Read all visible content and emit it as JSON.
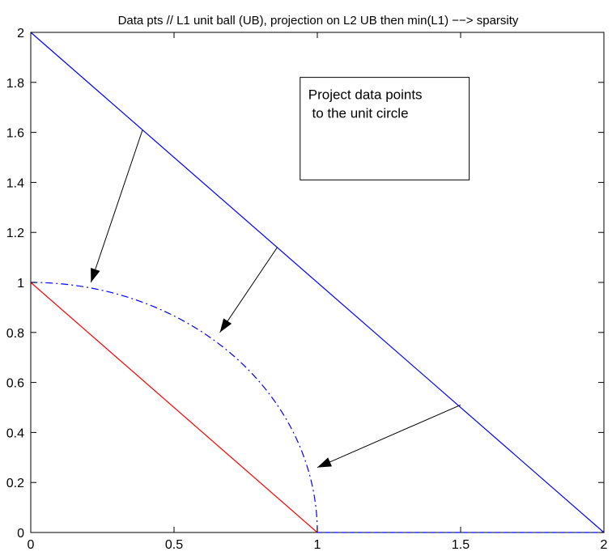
{
  "chart_data": {
    "type": "line",
    "title": "Data pts // L1 unit ball (UB), projection on L2 UB then min(L1) −−> sparsity",
    "xlabel": "",
    "ylabel": "",
    "xlim": [
      0,
      2
    ],
    "ylim": [
      0,
      2
    ],
    "x_ticks": [
      0,
      0.5,
      1,
      1.5,
      2
    ],
    "x_tick_labels": [
      "0",
      "0.5",
      "1",
      "1.5",
      "2"
    ],
    "y_ticks": [
      0,
      0.2,
      0.4,
      0.6,
      0.8,
      1,
      1.2,
      1.4,
      1.6,
      1.8,
      2
    ],
    "y_tick_labels": [
      "0",
      "0.2",
      "0.4",
      "0.6",
      "0.8",
      "1",
      "1.2",
      "1.4",
      "1.6",
      "1.8",
      "2"
    ],
    "grid": false,
    "series": [
      {
        "kind": "segment",
        "color": "#0000ff",
        "style": "solid",
        "x": [
          0,
          2
        ],
        "y": [
          2,
          0
        ]
      },
      {
        "kind": "segment",
        "color": "#ff0000",
        "style": "solid",
        "x": [
          0,
          1
        ],
        "y": [
          1,
          0
        ]
      },
      {
        "kind": "quarter-circle",
        "color": "#0000ff",
        "style": "dashdot",
        "center": [
          0,
          0
        ],
        "radius": 1
      },
      {
        "kind": "segment",
        "color": "#0000ff",
        "style": "dashed",
        "x": [
          1,
          2
        ],
        "y": [
          0,
          0
        ]
      }
    ],
    "arrows": [
      {
        "from": [
          0.39,
          1.61
        ],
        "to": [
          0.21,
          1.0
        ]
      },
      {
        "from": [
          0.86,
          1.14
        ],
        "to": [
          0.66,
          0.8
        ]
      },
      {
        "from": [
          1.5,
          0.51
        ],
        "to": [
          1.0,
          0.26
        ]
      }
    ],
    "annotation": {
      "lines": [
        "Project data points",
        " to the unit circle"
      ],
      "anchor": [
        0.94,
        1.49
      ],
      "box": [
        0.94,
        1.82,
        1.53,
        1.41
      ]
    }
  }
}
